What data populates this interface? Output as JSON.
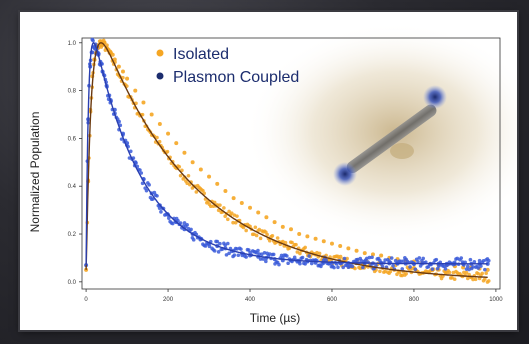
{
  "chart_data": {
    "type": "scatter",
    "xlabel": "Time (µs)",
    "ylabel": "Normalized Population",
    "xlim": [
      -10,
      1010
    ],
    "ylim": [
      -0.03,
      1.02
    ],
    "x_ticks": [
      0,
      200,
      400,
      600,
      800,
      1000
    ],
    "y_ticks": [
      0.0,
      0.2,
      0.4,
      0.6,
      0.8,
      1.0
    ],
    "legend_placement": "top-center",
    "grid": false,
    "series": [
      {
        "name": "Isolated",
        "color": "#f5a623",
        "fit_color": "#6b3a10",
        "rise_tau": 12,
        "decay_tau": 235,
        "peak_time": 42,
        "points_x": [
          0,
          5,
          10,
          15,
          20,
          25,
          30,
          35,
          40,
          45,
          50,
          55,
          60,
          65,
          70,
          80,
          90,
          100,
          120,
          140,
          160,
          180,
          200,
          220,
          240,
          260,
          280,
          300,
          320,
          340,
          360,
          380,
          400,
          420,
          440,
          460,
          480,
          500,
          520,
          540,
          560,
          580,
          600,
          620,
          640,
          660,
          680,
          700,
          720,
          740,
          760,
          780,
          800,
          820,
          840,
          860,
          880,
          900,
          920,
          940,
          960,
          980
        ],
        "points_y": [
          0.05,
          0.42,
          0.72,
          0.86,
          0.93,
          0.96,
          0.98,
          0.99,
          0.99,
          1.0,
          0.98,
          0.97,
          0.96,
          0.95,
          0.93,
          0.9,
          0.88,
          0.85,
          0.8,
          0.75,
          0.7,
          0.66,
          0.62,
          0.58,
          0.54,
          0.5,
          0.47,
          0.44,
          0.41,
          0.38,
          0.35,
          0.33,
          0.31,
          0.29,
          0.27,
          0.25,
          0.23,
          0.22,
          0.2,
          0.19,
          0.18,
          0.17,
          0.16,
          0.15,
          0.14,
          0.13,
          0.12,
          0.115,
          0.11,
          0.1,
          0.095,
          0.09,
          0.085,
          0.08,
          0.075,
          0.07,
          0.07,
          0.065,
          0.06,
          0.06,
          0.055,
          0.05
        ]
      },
      {
        "name": "Plasmon Coupled",
        "color": "#3a5bd9",
        "fit_color": "#2a3fb0",
        "rise_tau": 6,
        "decay_tau": 118,
        "peak_time": 18,
        "points_x": [
          0,
          5,
          10,
          15,
          20,
          25,
          30,
          35,
          40,
          50,
          60,
          70,
          80,
          90,
          100,
          120,
          140,
          160,
          180,
          200,
          220,
          240,
          260,
          280,
          300,
          320,
          340,
          360,
          380,
          400,
          420,
          440,
          460,
          480,
          500,
          520,
          540,
          560,
          580,
          600,
          620,
          640,
          660,
          680,
          700,
          720,
          740,
          760,
          780,
          800,
          820,
          840,
          860,
          880,
          900,
          920,
          940,
          960,
          980
        ],
        "points_y": [
          0.07,
          0.68,
          0.9,
          0.96,
          0.98,
          0.97,
          0.95,
          0.92,
          0.88,
          0.82,
          0.76,
          0.72,
          0.67,
          0.62,
          0.58,
          0.5,
          0.43,
          0.37,
          0.32,
          0.28,
          0.25,
          0.22,
          0.2,
          0.18,
          0.16,
          0.15,
          0.14,
          0.13,
          0.12,
          0.11,
          0.105,
          0.1,
          0.095,
          0.09,
          0.09,
          0.085,
          0.085,
          0.08,
          0.08,
          0.08,
          0.08,
          0.078,
          0.078,
          0.078,
          0.077,
          0.077,
          0.077,
          0.076,
          0.076,
          0.076,
          0.076,
          0.075,
          0.075,
          0.075,
          0.075,
          0.075,
          0.075,
          0.075,
          0.075
        ]
      }
    ]
  }
}
